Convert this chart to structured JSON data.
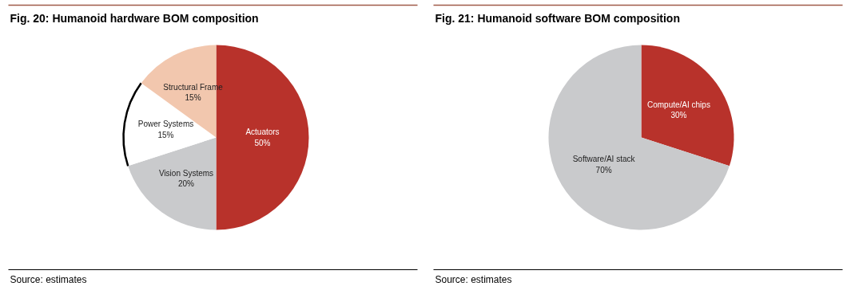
{
  "chart_data": [
    {
      "type": "pie",
      "title": "Fig. 20: Humanoid hardware BOM composition",
      "categories": [
        "Actuators",
        "Vision Systems",
        "Power Systems",
        "Structural Frame"
      ],
      "values": [
        50,
        20,
        15,
        15
      ],
      "colors": [
        "#b8322b",
        "#c9cacc",
        "#ffffff",
        "#f2c7ae"
      ],
      "value_labels": [
        "50%",
        "20%",
        "15%",
        "15%"
      ],
      "annotations": [
        "Source: estimates"
      ]
    },
    {
      "type": "pie",
      "title": "Fig. 21: Humanoid software BOM composition",
      "categories": [
        "Compute/AI chips",
        "Software/AI stack"
      ],
      "values": [
        30,
        70
      ],
      "colors": [
        "#b8322b",
        "#c9cacc"
      ],
      "value_labels": [
        "30%",
        "70%"
      ],
      "annotations": [
        "Source: estimates"
      ]
    }
  ]
}
